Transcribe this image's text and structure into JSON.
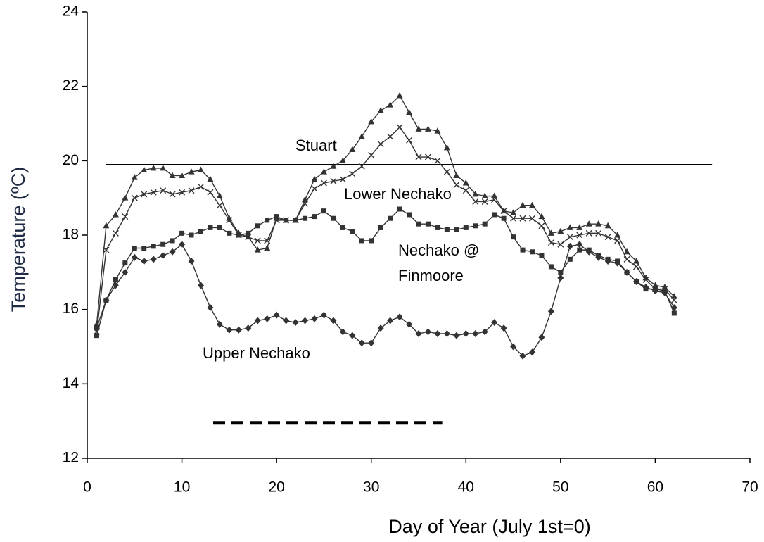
{
  "chart_data": {
    "type": "line",
    "x_label": "Day of Year (July 1st=0)",
    "y_label": "Temperature (ºC)",
    "xlim": [
      0,
      70
    ],
    "xticks": [
      0,
      10,
      20,
      30,
      40,
      50,
      60,
      70
    ],
    "ylim": [
      12,
      24
    ],
    "yticks": [
      12,
      14,
      16,
      18,
      20,
      22,
      24
    ],
    "x": [
      1,
      2,
      3,
      4,
      5,
      6,
      7,
      8,
      9,
      10,
      11,
      12,
      13,
      14,
      15,
      16,
      17,
      18,
      19,
      20,
      21,
      22,
      23,
      24,
      25,
      26,
      27,
      28,
      29,
      30,
      31,
      32,
      33,
      34,
      35,
      36,
      37,
      38,
      39,
      40,
      41,
      42,
      43,
      44,
      45,
      46,
      47,
      48,
      49,
      50,
      51,
      52,
      53,
      54,
      55,
      56,
      57,
      58,
      59,
      60,
      61,
      62
    ],
    "series": [
      {
        "name": "Stuart",
        "color": "#333333",
        "marker": "triangle",
        "values": [
          15.6,
          18.25,
          18.55,
          19.0,
          19.55,
          19.75,
          19.8,
          19.8,
          19.6,
          19.6,
          19.7,
          19.75,
          19.5,
          19.05,
          18.45,
          18.05,
          17.95,
          17.6,
          17.65,
          18.45,
          18.4,
          18.4,
          18.95,
          19.5,
          19.7,
          19.85,
          20.0,
          20.3,
          20.65,
          21.05,
          21.35,
          21.5,
          21.75,
          21.3,
          20.85,
          20.85,
          20.8,
          20.35,
          19.6,
          19.4,
          19.1,
          19.05,
          19.05,
          18.65,
          18.6,
          18.8,
          18.8,
          18.5,
          18.05,
          18.1,
          18.2,
          18.2,
          18.3,
          18.3,
          18.25,
          18.0,
          17.55,
          17.3,
          16.85,
          16.65,
          16.6,
          16.35
        ]
      },
      {
        "name": "Lower Nechako",
        "color": "#333333",
        "marker": "x",
        "values": [
          15.4,
          17.6,
          18.05,
          18.5,
          19.0,
          19.1,
          19.15,
          19.2,
          19.1,
          19.15,
          19.2,
          19.3,
          19.15,
          18.8,
          18.4,
          18.0,
          17.95,
          17.85,
          17.85,
          18.4,
          18.4,
          18.4,
          18.85,
          19.25,
          19.4,
          19.45,
          19.5,
          19.65,
          19.85,
          20.15,
          20.45,
          20.65,
          20.9,
          20.55,
          20.1,
          20.1,
          20.0,
          19.7,
          19.35,
          19.2,
          18.9,
          18.9,
          18.95,
          18.65,
          18.45,
          18.45,
          18.45,
          18.25,
          17.8,
          17.75,
          17.95,
          18.0,
          18.05,
          18.05,
          17.95,
          17.85,
          17.35,
          17.15,
          16.8,
          16.55,
          16.55,
          16.25
        ]
      },
      {
        "name": "Nechako @ Finmoore",
        "color": "#333333",
        "marker": "square",
        "values": [
          15.3,
          16.25,
          16.8,
          17.25,
          17.65,
          17.65,
          17.7,
          17.75,
          17.85,
          18.05,
          18.0,
          18.1,
          18.2,
          18.2,
          18.05,
          18.0,
          18.05,
          18.25,
          18.4,
          18.5,
          18.4,
          18.4,
          18.45,
          18.5,
          18.65,
          18.45,
          18.2,
          18.1,
          17.85,
          17.85,
          18.2,
          18.45,
          18.7,
          18.55,
          18.3,
          18.3,
          18.2,
          18.15,
          18.15,
          18.2,
          18.25,
          18.3,
          18.55,
          18.45,
          17.95,
          17.6,
          17.55,
          17.45,
          17.15,
          17.0,
          17.35,
          17.6,
          17.6,
          17.45,
          17.35,
          17.3,
          17.0,
          16.75,
          16.55,
          16.55,
          16.5,
          15.9
        ]
      },
      {
        "name": "Upper Nechako",
        "color": "#333333",
        "marker": "diamond",
        "values": [
          15.5,
          16.25,
          16.65,
          17.0,
          17.4,
          17.3,
          17.35,
          17.45,
          17.55,
          17.75,
          17.3,
          16.65,
          16.05,
          15.6,
          15.45,
          15.45,
          15.5,
          15.7,
          15.75,
          15.85,
          15.7,
          15.65,
          15.7,
          15.75,
          15.85,
          15.7,
          15.4,
          15.3,
          15.1,
          15.1,
          15.5,
          15.7,
          15.8,
          15.6,
          15.35,
          15.4,
          15.35,
          15.35,
          15.3,
          15.35,
          15.35,
          15.4,
          15.65,
          15.5,
          15.0,
          14.75,
          14.85,
          15.25,
          15.95,
          16.85,
          17.7,
          17.75,
          17.55,
          17.4,
          17.3,
          17.25,
          17.0,
          16.75,
          16.6,
          16.5,
          16.45,
          16.05
        ]
      }
    ],
    "threshold": {
      "value": 19.9,
      "x": [
        2,
        66
      ]
    },
    "period": {
      "value": 12.95,
      "x": [
        13.3,
        37.5
      ]
    }
  }
}
